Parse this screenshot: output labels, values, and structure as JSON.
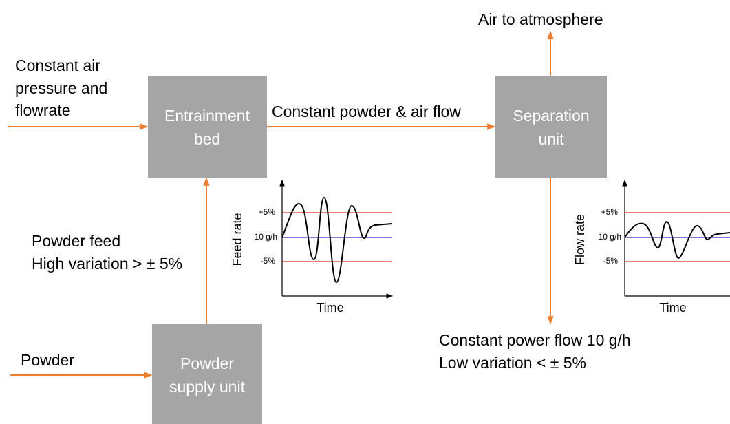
{
  "nodes": [
    {
      "label": [
        "Entrainment",
        "bed"
      ]
    },
    {
      "label": [
        "Separation",
        "unit"
      ]
    },
    {
      "label": [
        "Powder",
        "supply unit"
      ]
    }
  ],
  "inputs": {
    "air": [
      "Constant air",
      "pressure and",
      "flowrate"
    ],
    "powder": "Powder",
    "powder_feed": [
      "Powder feed",
      "High variation > ± 5%"
    ]
  },
  "flows": {
    "between": "Constant powder & air flow",
    "exhaust": "Air to atmosphere",
    "output": [
      "Constant power flow 10 g/h",
      "Low variation < ± 5%"
    ]
  },
  "charts": [
    {
      "ylabel": "Feed rate",
      "xlabel": "Time",
      "ticks": [
        "+5%",
        "10 g/h",
        "-5%"
      ]
    },
    {
      "ylabel": "Flow rate",
      "xlabel": "Time",
      "ticks": [
        "+5%",
        "10 g/h",
        "-5%"
      ]
    }
  ]
}
